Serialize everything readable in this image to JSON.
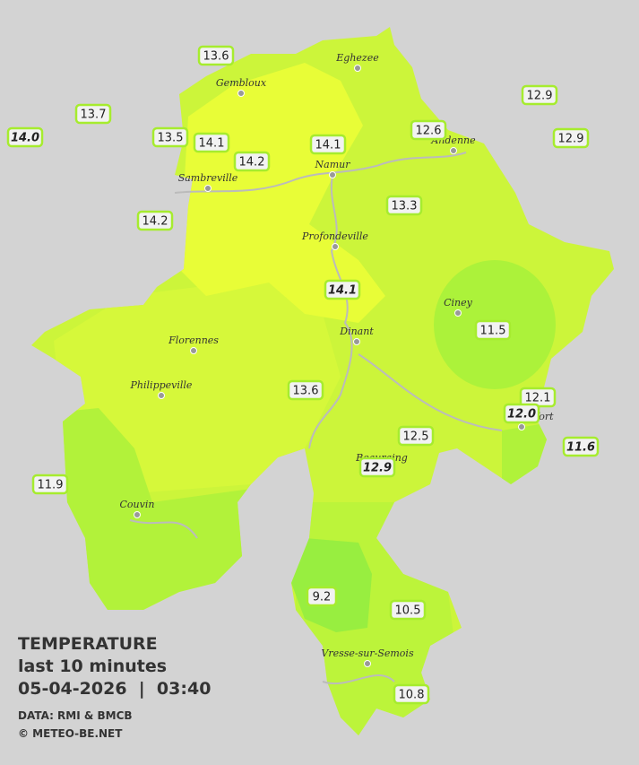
{
  "title": {
    "heading": "TEMPERATURE",
    "period": "last 10 minutes",
    "datetime": "05-04-2026  |  03:40",
    "source": "DATA: RMI & BMCB",
    "copyright": "© METEO-BE.NET"
  },
  "places": [
    "Eghezee",
    "Gembloux",
    "Andenne",
    "Namur",
    "Sambreville",
    "Profondeville",
    "Ciney",
    "Dinant",
    "Florennes",
    "Philippeville",
    "Couvin",
    "Vresse-sur-Semois",
    "Rochefort",
    "Beauraing"
  ],
  "readings": [
    {
      "label": "13.6"
    },
    {
      "label": "13.7"
    },
    {
      "label": "14.0",
      "italic": true
    },
    {
      "label": "13.5"
    },
    {
      "label": "14.1"
    },
    {
      "label": "14.1"
    },
    {
      "label": "14.2"
    },
    {
      "label": "12.6"
    },
    {
      "label": "12.9"
    },
    {
      "label": "12.9"
    },
    {
      "label": "13.3"
    },
    {
      "label": "14.2"
    },
    {
      "label": "14.1",
      "italic": true
    },
    {
      "label": "11.5"
    },
    {
      "label": "13.6"
    },
    {
      "label": "12.1"
    },
    {
      "label": "12.0",
      "italic": true
    },
    {
      "label": "12.5"
    },
    {
      "label": "11.6",
      "italic": true
    },
    {
      "label": "12.9",
      "italic": true
    },
    {
      "label": "11.9"
    },
    {
      "label": "9.2"
    },
    {
      "label": "10.5"
    },
    {
      "label": "10.8"
    }
  ]
}
